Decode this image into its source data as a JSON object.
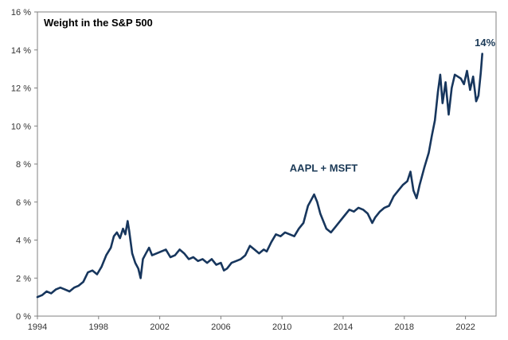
{
  "chart_data": {
    "type": "line",
    "title": "Weight in the S&P 500",
    "xlabel": "",
    "ylabel": "",
    "x_ticks": [
      "1994",
      "1998",
      "2002",
      "2006",
      "2010",
      "2014",
      "2018",
      "2022"
    ],
    "y_ticks": [
      "0 %",
      "2 %",
      "4 %",
      "6 %",
      "8 %",
      "10 %",
      "12 %",
      "14 %",
      "16 %"
    ],
    "xlim": [
      1994,
      2024
    ],
    "ylim": [
      0,
      16
    ],
    "grid": false,
    "colors": {
      "line": "#17365d",
      "frame": "#808080"
    },
    "annotations": [
      {
        "text": "AAPL  + MSFT",
        "x": 2010.5,
        "y": 7.6
      },
      {
        "text": "14%",
        "x": 2022.6,
        "y": 14.2
      }
    ],
    "series": [
      {
        "x": [
          1994.0,
          1994.3,
          1994.6,
          1994.9,
          1995.2,
          1995.5,
          1995.8,
          1996.1,
          1996.4,
          1996.7,
          1997.0,
          1997.3,
          1997.6,
          1997.9,
          1998.2,
          1998.5,
          1998.8,
          1999.0,
          1999.2,
          1999.4,
          1999.6,
          1999.75,
          1999.9,
          2000.0,
          2000.2,
          2000.4,
          2000.6,
          2000.75,
          2000.9,
          2001.1,
          2001.3,
          2001.5,
          2001.8,
          2002.1,
          2002.4,
          2002.7,
          2003.0,
          2003.3,
          2003.6,
          2003.9,
          2004.2,
          2004.5,
          2004.8,
          2005.1,
          2005.4,
          2005.7,
          2006.0,
          2006.2,
          2006.4,
          2006.7,
          2007.0,
          2007.3,
          2007.6,
          2007.9,
          2008.2,
          2008.5,
          2008.8,
          2009.0,
          2009.3,
          2009.6,
          2009.9,
          2010.2,
          2010.5,
          2010.8,
          2011.1,
          2011.4,
          2011.7,
          2011.9,
          2012.1,
          2012.3,
          2012.5,
          2012.7,
          2012.9,
          2013.2,
          2013.5,
          2013.8,
          2014.1,
          2014.4,
          2014.7,
          2015.0,
          2015.3,
          2015.6,
          2015.9,
          2016.1,
          2016.4,
          2016.7,
          2017.0,
          2017.3,
          2017.6,
          2017.9,
          2018.2,
          2018.4,
          2018.6,
          2018.8,
          2019.0,
          2019.3,
          2019.6,
          2019.8,
          2020.0,
          2020.2,
          2020.35,
          2020.5,
          2020.7,
          2020.9,
          2021.1,
          2021.3,
          2021.5,
          2021.7,
          2021.9,
          2022.1,
          2022.3,
          2022.5,
          2022.7,
          2022.85,
          2023.0,
          2023.1
        ],
        "y": [
          1.0,
          1.1,
          1.3,
          1.2,
          1.4,
          1.5,
          1.4,
          1.3,
          1.5,
          1.6,
          1.8,
          2.3,
          2.4,
          2.2,
          2.6,
          3.2,
          3.6,
          4.2,
          4.4,
          4.1,
          4.6,
          4.3,
          5.0,
          4.5,
          3.3,
          2.8,
          2.5,
          2.0,
          3.0,
          3.3,
          3.6,
          3.2,
          3.3,
          3.4,
          3.5,
          3.1,
          3.2,
          3.5,
          3.3,
          3.0,
          3.1,
          2.9,
          3.0,
          2.8,
          3.0,
          2.7,
          2.8,
          2.4,
          2.5,
          2.8,
          2.9,
          3.0,
          3.2,
          3.7,
          3.5,
          3.3,
          3.5,
          3.4,
          3.9,
          4.3,
          4.2,
          4.4,
          4.3,
          4.2,
          4.6,
          4.9,
          5.8,
          6.1,
          6.4,
          6.0,
          5.4,
          5.0,
          4.6,
          4.4,
          4.7,
          5.0,
          5.3,
          5.6,
          5.5,
          5.7,
          5.6,
          5.4,
          4.9,
          5.2,
          5.5,
          5.7,
          5.8,
          6.3,
          6.6,
          6.9,
          7.1,
          7.6,
          6.6,
          6.2,
          6.9,
          7.8,
          8.6,
          9.5,
          10.3,
          11.8,
          12.7,
          11.2,
          12.3,
          10.6,
          12.0,
          12.7,
          12.6,
          12.5,
          12.2,
          12.9,
          11.9,
          12.6,
          11.3,
          11.6,
          12.8,
          13.8
        ]
      }
    ]
  }
}
